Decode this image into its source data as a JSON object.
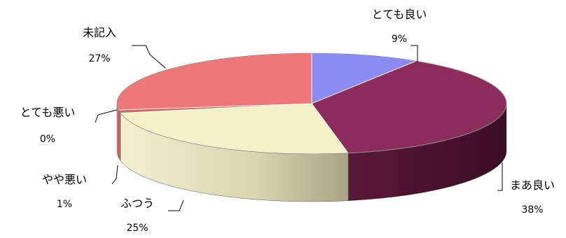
{
  "chart_data": {
    "type": "pie",
    "style": "3d-exploded-flat",
    "slices": [
      {
        "label": "とても良い",
        "value": 9,
        "display": "9%",
        "color": "#8c8cf0"
      },
      {
        "label": "まあ良い",
        "value": 38,
        "display": "38%",
        "color": "#8b2d5c"
      },
      {
        "label": "ふつう",
        "value": 25,
        "display": "25%",
        "color": "#f3f1c7"
      },
      {
        "label": "やや悪い",
        "value": 1,
        "display": "1%",
        "color": "#c86a6a"
      },
      {
        "label": "とても悪い",
        "value": 0,
        "display": "0%",
        "color": "#eeeeee"
      },
      {
        "label": "未記入",
        "value": 27,
        "display": "27%",
        "color": "#ee7777"
      }
    ],
    "legend": "none"
  }
}
